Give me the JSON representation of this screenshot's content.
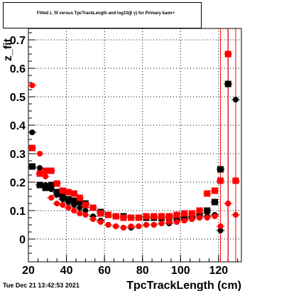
{
  "window": {
    "title": "Fitted z_fit versus TpcTrackLength and log10(β γ) for Primary kaon+",
    "timestamp": "Tue Dec 21 13:42:53 2021"
  },
  "chart_data": {
    "type": "scatter",
    "title": "Fitted z_fit versus TpcTrackLength and log10(β γ) for Primary kaon+",
    "xlabel": "TpcTrackLength (cm)",
    "ylabel": "z_fit",
    "xlim": [
      20,
      132
    ],
    "ylim": [
      -0.08,
      0.74
    ],
    "xticks": [
      20,
      40,
      60,
      80,
      100,
      120
    ],
    "yticks": [
      0,
      0.1,
      0.2,
      0.3,
      0.4,
      0.5,
      0.6,
      0.7
    ],
    "ytick_labels": [
      "0",
      "0.1",
      "0.2",
      "0.3",
      "0.4",
      "0.5",
      "0.6",
      "0.7"
    ],
    "xtick_labels": [
      "20",
      "40",
      "60",
      "80",
      "100",
      "120"
    ],
    "grid": true,
    "series": [
      {
        "color": "#000000",
        "marker": "square",
        "x": [
          22,
          26,
          29,
          32,
          35,
          38,
          41,
          44,
          47,
          50,
          54,
          58,
          62,
          66,
          70,
          74,
          78,
          82,
          86,
          90,
          94,
          98,
          102,
          106,
          110,
          114,
          118,
          121,
          125
        ],
        "y": [
          0.255,
          0.19,
          0.18,
          0.19,
          0.165,
          0.15,
          0.14,
          0.135,
          0.13,
          0.125,
          0.11,
          0.095,
          0.085,
          0.08,
          0.08,
          0.075,
          0.075,
          0.075,
          0.075,
          0.075,
          0.075,
          0.075,
          0.075,
          0.08,
          0.09,
          0.1,
          0.13,
          0.245,
          0.545
        ]
      },
      {
        "color": "#000000",
        "marker": "circle",
        "x": [
          22,
          26,
          29,
          32,
          35,
          38,
          41,
          44,
          47,
          50,
          54,
          58,
          62,
          66,
          70,
          74,
          78,
          82,
          86,
          90,
          94,
          98,
          102,
          106,
          110,
          114,
          118,
          121,
          125,
          129
        ],
        "y": [
          0.375,
          0.25,
          0.19,
          0.175,
          0.155,
          0.14,
          0.13,
          0.12,
          0.11,
          0.1,
          0.08,
          0.065,
          0.05,
          0.045,
          0.04,
          0.04,
          0.045,
          0.05,
          0.05,
          0.055,
          0.055,
          0.06,
          0.065,
          0.07,
          0.075,
          0.08,
          0.085,
          0.03,
          0.125,
          0.49
        ]
      },
      {
        "color": "#ff0000",
        "marker": "square",
        "x": [
          22,
          26,
          29,
          32,
          35,
          38,
          41,
          44,
          47,
          50,
          54,
          58,
          62,
          66,
          70,
          74,
          78,
          82,
          86,
          90,
          94,
          98,
          102,
          106,
          110,
          114,
          118,
          121,
          125,
          129
        ],
        "y": [
          0.32,
          0.23,
          0.24,
          0.24,
          0.195,
          0.17,
          0.165,
          0.16,
          0.145,
          0.12,
          0.11,
          0.09,
          0.085,
          0.08,
          0.075,
          0.075,
          0.075,
          0.08,
          0.08,
          0.08,
          0.08,
          0.085,
          0.09,
          0.09,
          0.1,
          0.16,
          0.17,
          0.205,
          0.65,
          0.205
        ]
      },
      {
        "color": "#ff0000",
        "marker": "circle",
        "x": [
          22,
          26,
          29,
          32,
          35,
          38,
          41,
          44,
          47,
          50,
          54,
          58,
          62,
          66,
          70,
          74,
          78,
          82,
          86,
          90,
          94,
          98,
          102,
          106,
          110,
          114,
          118,
          121,
          125,
          129
        ],
        "y": [
          0.54,
          0.3,
          0.22,
          0.145,
          0.125,
          0.12,
          0.11,
          0.1,
          0.09,
          0.085,
          0.07,
          0.06,
          0.05,
          0.045,
          0.04,
          0.045,
          0.045,
          0.05,
          0.05,
          0.055,
          0.06,
          0.06,
          0.065,
          0.07,
          0.075,
          0.075,
          0.08,
          0.045,
          0.125,
          0.085
        ]
      }
    ]
  }
}
